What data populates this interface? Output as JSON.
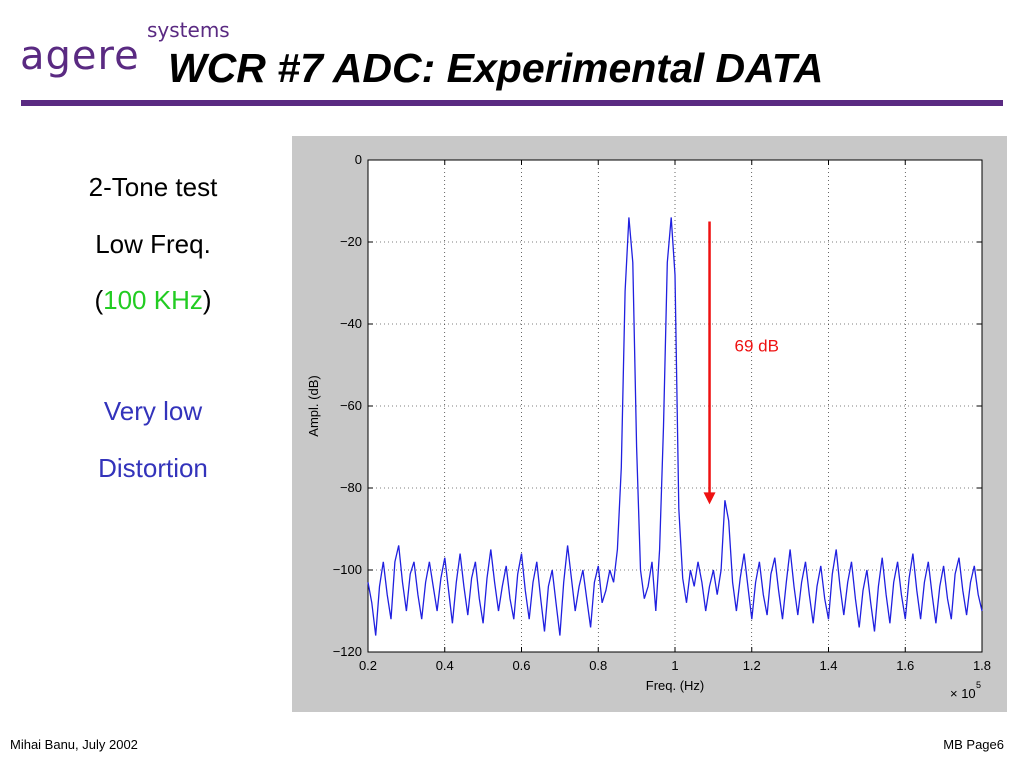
{
  "slide": {
    "logo_main": "agere",
    "logo_sub": "systems",
    "title": "WCR #7   ADC: Experimental DATA",
    "left_text": {
      "line1": "2-Tone test",
      "line2": "Low Freq.",
      "line3_open": "(",
      "line3_value": "100 KHz",
      "line3_close": ")",
      "line4": "Very low",
      "line5": "Distortion"
    },
    "footer_left": "Mihai Banu, July 2002",
    "footer_right": "MB Page6"
  },
  "colors": {
    "brand_purple": "#5a2a82",
    "highlight_green": "#22cc22",
    "text_blue": "#3333bb",
    "trace_blue": "#2020e0",
    "arrow_red": "#ee1111"
  },
  "chart_data": {
    "type": "line",
    "xlabel": "Freq. (Hz)",
    "ylabel": "Ampl. (dB)",
    "x_multiplier_base": "× 10",
    "x_multiplier_exp": "5",
    "xlim": [
      0.2,
      1.8
    ],
    "ylim": [
      -120,
      0
    ],
    "xticks": [
      0.2,
      0.4,
      0.6,
      0.8,
      1.0,
      1.2,
      1.4,
      1.6,
      1.8
    ],
    "xtick_labels": [
      "0.2",
      "0.4",
      "0.6",
      "0.8",
      "1",
      "1.2",
      "1.4",
      "1.6",
      "1.8"
    ],
    "yticks": [
      0,
      -20,
      -40,
      -60,
      -80,
      -100,
      -120
    ],
    "ytick_labels": [
      "0",
      "−20",
      "−40",
      "−60",
      "−80",
      "−100",
      "−120"
    ],
    "grid": true,
    "series": [
      {
        "x": [
          0.2,
          0.21,
          0.22,
          0.23,
          0.24,
          0.25,
          0.26,
          0.27,
          0.28,
          0.29,
          0.3,
          0.31,
          0.32,
          0.33,
          0.34,
          0.35,
          0.36,
          0.37,
          0.38,
          0.39,
          0.4,
          0.41,
          0.42,
          0.43,
          0.44,
          0.45,
          0.46,
          0.47,
          0.48,
          0.49,
          0.5,
          0.51,
          0.52,
          0.53,
          0.54,
          0.55,
          0.56,
          0.57,
          0.58,
          0.59,
          0.6,
          0.61,
          0.62,
          0.63,
          0.64,
          0.65,
          0.66,
          0.67,
          0.68,
          0.69,
          0.7,
          0.71,
          0.72,
          0.73,
          0.74,
          0.75,
          0.76,
          0.77,
          0.78,
          0.79,
          0.8,
          0.81,
          0.82,
          0.83,
          0.84,
          0.85,
          0.86,
          0.87,
          0.88,
          0.89,
          0.9,
          0.91,
          0.92,
          0.93,
          0.94,
          0.95,
          0.96,
          0.97,
          0.98,
          0.99,
          1.0,
          1.01,
          1.02,
          1.03,
          1.04,
          1.05,
          1.06,
          1.07,
          1.08,
          1.09,
          1.1,
          1.11,
          1.12,
          1.13,
          1.14,
          1.15,
          1.16,
          1.17,
          1.18,
          1.19,
          1.2,
          1.21,
          1.22,
          1.23,
          1.24,
          1.25,
          1.26,
          1.27,
          1.28,
          1.29,
          1.3,
          1.31,
          1.32,
          1.33,
          1.34,
          1.35,
          1.36,
          1.37,
          1.38,
          1.39,
          1.4,
          1.41,
          1.42,
          1.43,
          1.44,
          1.45,
          1.46,
          1.47,
          1.48,
          1.49,
          1.5,
          1.51,
          1.52,
          1.53,
          1.54,
          1.55,
          1.56,
          1.57,
          1.58,
          1.59,
          1.6,
          1.61,
          1.62,
          1.63,
          1.64,
          1.65,
          1.66,
          1.67,
          1.68,
          1.69,
          1.7,
          1.71,
          1.72,
          1.73,
          1.74,
          1.75,
          1.76,
          1.77,
          1.78,
          1.79,
          1.8
        ],
        "y": [
          -103,
          -108,
          -116,
          -104,
          -98,
          -106,
          -112,
          -98,
          -94,
          -103,
          -110,
          -101,
          -98,
          -106,
          -112,
          -103,
          -98,
          -104,
          -110,
          -102,
          -97,
          -105,
          -113,
          -103,
          -96,
          -104,
          -111,
          -102,
          -98,
          -107,
          -113,
          -102,
          -95,
          -103,
          -110,
          -104,
          -99,
          -107,
          -112,
          -101,
          -96,
          -105,
          -112,
          -103,
          -98,
          -107,
          -115,
          -104,
          -100,
          -108,
          -116,
          -103,
          -94,
          -102,
          -110,
          -104,
          -100,
          -107,
          -114,
          -103,
          -99,
          -108,
          -105,
          -100,
          -103,
          -95,
          -75,
          -32,
          -14,
          -25,
          -70,
          -100,
          -107,
          -104,
          -98,
          -110,
          -95,
          -65,
          -25,
          -14,
          -28,
          -85,
          -102,
          -108,
          -100,
          -104,
          -98,
          -103,
          -110,
          -104,
          -100,
          -106,
          -100,
          -83,
          -88,
          -103,
          -110,
          -102,
          -96,
          -104,
          -112,
          -103,
          -98,
          -106,
          -111,
          -101,
          -97,
          -105,
          -112,
          -103,
          -95,
          -104,
          -111,
          -103,
          -98,
          -106,
          -113,
          -104,
          -99,
          -107,
          -112,
          -101,
          -95,
          -104,
          -111,
          -103,
          -98,
          -107,
          -114,
          -105,
          -100,
          -108,
          -115,
          -104,
          -97,
          -106,
          -113,
          -103,
          -98,
          -106,
          -112,
          -102,
          -96,
          -105,
          -112,
          -103,
          -98,
          -106,
          -113,
          -104,
          -99,
          -107,
          -112,
          -101,
          -97,
          -105,
          -111,
          -103,
          -99,
          -106,
          -110
        ]
      }
    ],
    "annotations": [
      {
        "text": "69 dB",
        "arrow_from": [
          1.09,
          -15
        ],
        "arrow_to": [
          1.09,
          -84
        ]
      }
    ]
  }
}
